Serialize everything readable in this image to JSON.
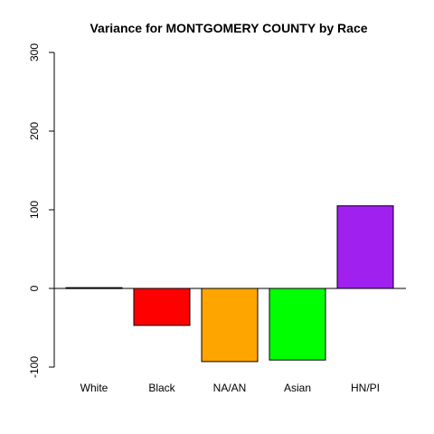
{
  "chart_data": {
    "type": "bar",
    "title": "Variance for MONTGOMERY COUNTY by Race",
    "xlabel": "",
    "ylabel": "",
    "categories": [
      "White",
      "Black",
      "NA/AN",
      "Asian",
      "HN/PI"
    ],
    "values": [
      1,
      -47,
      -93,
      -91,
      105
    ],
    "colors": [
      "#ffffff",
      "#ff0000",
      "#ffa500",
      "#00ff00",
      "#a020f0"
    ],
    "ylim": [
      -100,
      300
    ],
    "yticks": [
      -100,
      0,
      100,
      200,
      300
    ],
    "ytick_labels": [
      "-100",
      "0",
      "100",
      "200",
      "300"
    ],
    "baseline": 0,
    "grid": false,
    "legend": "none"
  }
}
